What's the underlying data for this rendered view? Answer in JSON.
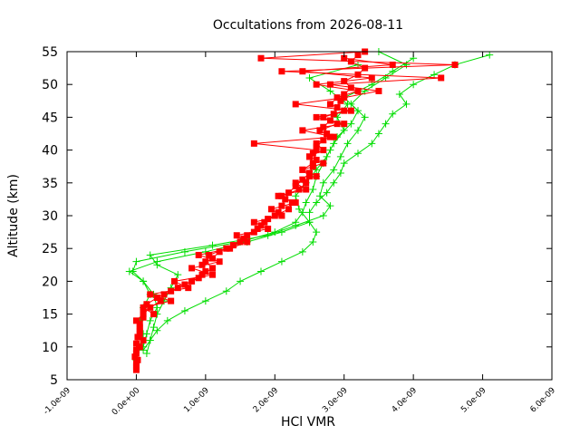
{
  "chart_data": {
    "type": "line",
    "title": "Occultations from 2026-08-11",
    "xlabel": "HCl VMR",
    "ylabel": "Altitude (km)",
    "xlim": [
      -1e-09,
      6e-09
    ],
    "ylim": [
      5,
      55
    ],
    "x_tick_labels": [
      "-1.0e-09",
      "0.0e+00",
      "1.0e-09",
      "2.0e-09",
      "3.0e-09",
      "4.0e-09",
      "5.0e-09",
      "6.0e-09"
    ],
    "x_tick_values": [
      -1e-09,
      0,
      1e-09,
      2e-09,
      3e-09,
      4e-09,
      5e-09,
      6e-09
    ],
    "y_tick_labels": [
      "5",
      "10",
      "15",
      "20",
      "25",
      "30",
      "35",
      "40",
      "45",
      "50",
      "55"
    ],
    "y_tick_values": [
      5,
      10,
      15,
      20,
      25,
      30,
      35,
      40,
      45,
      50,
      55
    ],
    "grid": false,
    "legend": "none",
    "series": [
      {
        "color": "#00dd00",
        "marker": "plus",
        "profiles": [
          {
            "altitude": [
              9.5,
              11,
              12.5,
              14,
              15.5,
              17,
              18.5,
              20,
              21.5,
              23,
              24.5,
              26,
              27.5,
              29,
              30.5,
              32,
              33.5,
              35,
              36.5,
              38,
              39.5,
              41,
              42.5,
              44,
              45.5,
              47,
              48.5,
              50,
              51.5,
              53,
              54.5
            ],
            "vmr": [
              1e-10,
              2e-10,
              3e-10,
              4.5e-10,
              7e-10,
              1e-09,
              1.3e-09,
              1.5e-09,
              1.8e-09,
              2.1e-09,
              2.4e-09,
              2.55e-09,
              2.6e-09,
              2.5e-09,
              2.5e-09,
              2.6e-09,
              2.75e-09,
              2.85e-09,
              2.95e-09,
              3e-09,
              3.2e-09,
              3.4e-09,
              3.5e-09,
              3.6e-09,
              3.7e-09,
              3.9e-09,
              3.8e-09,
              4e-09,
              4.3e-09,
              4.6e-09,
              5.1e-09
            ]
          },
          {
            "altitude": [
              8,
              10,
              12,
              14,
              16,
              18,
              20,
              21.5,
              23,
              24.5,
              26,
              27.5,
              29,
              30.5,
              32,
              34,
              36,
              38,
              40,
              42,
              44,
              46,
              48,
              50,
              52,
              54
            ],
            "vmr": [
              0.0,
              5e-11,
              1e-10,
              5e-11,
              1e-10,
              2e-10,
              1e-10,
              -5e-11,
              0.0,
              7e-10,
              1.5e-09,
              2e-09,
              2.3e-09,
              2.4e-09,
              2.45e-09,
              2.55e-09,
              2.6e-09,
              2.7e-09,
              2.8e-09,
              2.9e-09,
              3.1e-09,
              3.2e-09,
              3e-09,
              3.4e-09,
              3.7e-09,
              4e-09
            ]
          },
          {
            "altitude": [
              9,
              11,
              13,
              15,
              17,
              19,
              21,
              22.5,
              24,
              25.5,
              27,
              28.5,
              30,
              31.5,
              33,
              35,
              37,
              39,
              41,
              43,
              45,
              47,
              49,
              51,
              53,
              55
            ],
            "vmr": [
              1.5e-10,
              2e-10,
              2.5e-10,
              3e-10,
              4e-10,
              5e-10,
              6e-10,
              3e-10,
              2e-10,
              1.1e-09,
              1.9e-09,
              2.3e-09,
              2.7e-09,
              2.8e-09,
              2.65e-09,
              2.7e-09,
              2.85e-09,
              2.95e-09,
              3.05e-09,
              3.2e-09,
              3.3e-09,
              3.1e-09,
              3.3e-09,
              3.6e-09,
              3.9e-09,
              3.5e-09
            ]
          },
          {
            "altitude": [
              10,
              12,
              14,
              16,
              18,
              20,
              21.5,
              23,
              24.5,
              26,
              27.5,
              29,
              31,
              33,
              35,
              37,
              39,
              41,
              43,
              45,
              47,
              49,
              51,
              53
            ],
            "vmr": [
              1e-10,
              1.5e-10,
              2e-10,
              3e-10,
              2.5e-10,
              1e-10,
              -1e-10,
              3e-10,
              1e-09,
              1.6e-09,
              2.1e-09,
              2.5e-09,
              2.35e-09,
              2.3e-09,
              2.45e-09,
              2.6e-09,
              2.75e-09,
              2.85e-09,
              3e-09,
              2.9e-09,
              3.05e-09,
              2.8e-09,
              2.5e-09,
              3.2e-09
            ]
          }
        ]
      },
      {
        "color": "#ff0000",
        "marker": "square",
        "profiles": [
          {
            "altitude": [
              6.5,
              7.5,
              8.5,
              9.5,
              10.5,
              11.5,
              12.5,
              13.5,
              14.5,
              15.5,
              16.5,
              17.5,
              18.5,
              19.5,
              20.5,
              21.5,
              22.5,
              23.5,
              24.5,
              25.5,
              26.5,
              27.5,
              28.5,
              29.5,
              30.5,
              31.5,
              32.5,
              33.5,
              34.5,
              35.5,
              36.5,
              37.5,
              38.5,
              39.5,
              40.5,
              41.5,
              42.5,
              43.5,
              44.5,
              45.5,
              46.5,
              47.5,
              48.5,
              49.5,
              50.5,
              51.5,
              52.5,
              53.5,
              54.5
            ],
            "vmr": [
              0.0,
              0.0,
              -2e-11,
              0.0,
              0.0,
              2e-11,
              5e-11,
              5e-11,
              1e-10,
              1e-10,
              1.5e-10,
              3e-10,
              5e-10,
              7e-10,
              9e-10,
              1e-09,
              9.5e-10,
              1.1e-09,
              1.2e-09,
              1.4e-09,
              1.55e-09,
              1.7e-09,
              1.8e-09,
              1.9e-09,
              2.05e-09,
              2.1e-09,
              2.15e-09,
              2.2e-09,
              2.3e-09,
              2.4e-09,
              2.5e-09,
              2.55e-09,
              2.6e-09,
              2.55e-09,
              2.6e-09,
              2.7e-09,
              2.75e-09,
              2.7e-09,
              2.8e-09,
              2.85e-09,
              2.9e-09,
              2.95e-09,
              3e-09,
              3.1e-09,
              3e-09,
              3.2e-09,
              3.3e-09,
              3.1e-09,
              3.2e-09
            ]
          },
          {
            "altitude": [
              7,
              8,
              9,
              10,
              11,
              12,
              13,
              14,
              15,
              16,
              17,
              18,
              19,
              20,
              21,
              22,
              23,
              24,
              25,
              26,
              27,
              28,
              29,
              30,
              31,
              32,
              33,
              34,
              35,
              36,
              37,
              38,
              39,
              40,
              41,
              42,
              43,
              44,
              45,
              46,
              47,
              48,
              49,
              50,
              51,
              52,
              53,
              54
            ],
            "vmr": [
              0.0,
              2e-11,
              0.0,
              5e-11,
              1e-10,
              5e-11,
              5e-11,
              0.0,
              1e-10,
              2e-10,
              3.5e-10,
              4e-10,
              6e-10,
              8e-10,
              9.5e-10,
              1.1e-09,
              1e-09,
              1.05e-09,
              1.3e-09,
              1.5e-09,
              1.6e-09,
              1.75e-09,
              1.85e-09,
              2e-09,
              2.2e-09,
              2.25e-09,
              2.1e-09,
              2.35e-09,
              2.45e-09,
              2.5e-09,
              2.4e-09,
              2.55e-09,
              2.5e-09,
              2.7e-09,
              2.6e-09,
              2.8e-09,
              2.65e-09,
              2.9e-09,
              2.7e-09,
              3e-09,
              2.8e-09,
              2.9e-09,
              3.2e-09,
              2.6e-09,
              3.4e-09,
              2.4e-09,
              3.7e-09,
              3e-09
            ]
          },
          {
            "altitude": [
              15,
              16,
              17,
              18,
              19,
              20,
              21,
              22,
              23,
              24,
              25,
              26,
              27,
              28,
              29,
              30,
              31,
              32,
              33,
              34,
              35,
              36,
              37,
              38,
              39,
              40,
              41,
              42,
              43,
              44,
              45,
              46,
              47,
              48,
              49,
              50,
              51,
              52,
              53,
              54,
              55
            ],
            "vmr": [
              2.5e-10,
              1e-10,
              5e-10,
              2e-10,
              7.5e-10,
              5.5e-10,
              1.1e-09,
              8e-10,
              1.2e-09,
              9e-10,
              1.35e-09,
              1.6e-09,
              1.45e-09,
              1.9e-09,
              1.7e-09,
              2.1e-09,
              1.95e-09,
              2.3e-09,
              2.05e-09,
              2.45e-09,
              2.3e-09,
              2.6e-09,
              2.4e-09,
              2.7e-09,
              2.5e-09,
              2.6e-09,
              1.7e-09,
              2.85e-09,
              2.4e-09,
              3e-09,
              2.6e-09,
              3.1e-09,
              2.3e-09,
              3e-09,
              3.5e-09,
              2.8e-09,
              4.4e-09,
              2.1e-09,
              4.6e-09,
              1.8e-09,
              3.3e-09
            ]
          }
        ]
      }
    ]
  }
}
